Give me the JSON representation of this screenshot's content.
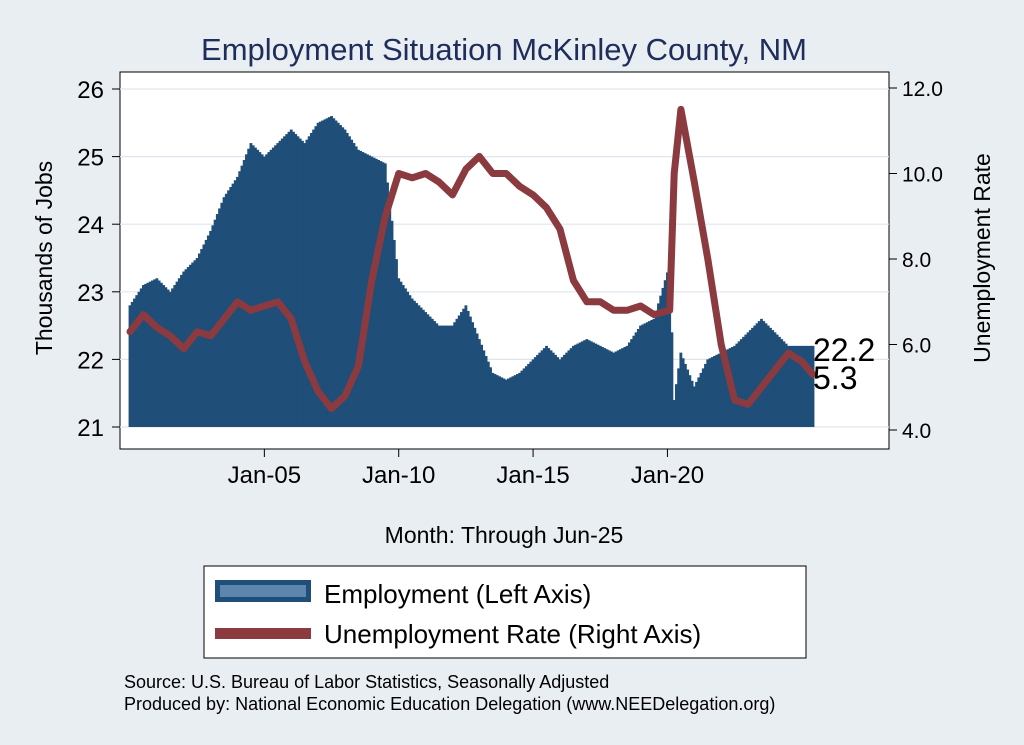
{
  "chart_data": {
    "type": "bar+line",
    "title": "Employment Situation McKinley  County, NM",
    "xlabel": "Month: Through Jun-25",
    "ylabel_left": "Thousands of Jobs",
    "ylabel_right": "Unemployment Rate",
    "x_ticks": [
      "Jan-05",
      "Jan-10",
      "Jan-15",
      "Jan-20"
    ],
    "y_left_ticks": [
      "21",
      "22",
      "23",
      "24",
      "25",
      "26"
    ],
    "y_left_range": [
      21,
      26
    ],
    "y_right_ticks": [
      "4.0",
      "6.0",
      "8.0",
      "10.0",
      "12.0"
    ],
    "y_right_range": [
      4,
      12
    ],
    "grid": true,
    "legend_position": "bottom",
    "series": [
      {
        "name": "Employment (Left Axis)",
        "axis": "left",
        "kind": "bar",
        "color": "#1f4e79",
        "points": [
          [
            "Jan-00",
            22.8
          ],
          [
            "Jul-00",
            23.1
          ],
          [
            "Jan-01",
            23.2
          ],
          [
            "Jul-01",
            23.0
          ],
          [
            "Jan-02",
            23.3
          ],
          [
            "Jul-02",
            23.5
          ],
          [
            "Jan-03",
            23.9
          ],
          [
            "Jul-03",
            24.4
          ],
          [
            "Jan-04",
            24.7
          ],
          [
            "Jul-04",
            25.2
          ],
          [
            "Jan-05",
            25.0
          ],
          [
            "Jul-05",
            25.2
          ],
          [
            "Jan-06",
            25.4
          ],
          [
            "Jul-06",
            25.2
          ],
          [
            "Jan-07",
            25.5
          ],
          [
            "Jul-07",
            25.6
          ],
          [
            "Jan-08",
            25.4
          ],
          [
            "Jul-08",
            25.1
          ],
          [
            "Jan-09",
            25.0
          ],
          [
            "Jul-09",
            24.9
          ],
          [
            "Jan-10",
            23.2
          ],
          [
            "Jul-10",
            22.9
          ],
          [
            "Jan-11",
            22.7
          ],
          [
            "Jul-11",
            22.5
          ],
          [
            "Jan-12",
            22.5
          ],
          [
            "Jul-12",
            22.8
          ],
          [
            "Jan-13",
            22.3
          ],
          [
            "Jul-13",
            21.8
          ],
          [
            "Jan-14",
            21.7
          ],
          [
            "Jul-14",
            21.8
          ],
          [
            "Jan-15",
            22.0
          ],
          [
            "Jul-15",
            22.2
          ],
          [
            "Jan-16",
            22.0
          ],
          [
            "Jul-16",
            22.2
          ],
          [
            "Jan-17",
            22.3
          ],
          [
            "Jul-17",
            22.2
          ],
          [
            "Jan-18",
            22.1
          ],
          [
            "Jul-18",
            22.2
          ],
          [
            "Jan-19",
            22.5
          ],
          [
            "Jul-19",
            22.6
          ],
          [
            "Feb-20",
            23.4
          ],
          [
            "Apr-20",
            21.4
          ],
          [
            "Jul-20",
            22.1
          ],
          [
            "Jan-21",
            21.6
          ],
          [
            "Jul-21",
            22.0
          ],
          [
            "Jan-22",
            22.1
          ],
          [
            "Jul-22",
            22.2
          ],
          [
            "Jan-23",
            22.4
          ],
          [
            "Jul-23",
            22.6
          ],
          [
            "Jan-24",
            22.4
          ],
          [
            "Jul-24",
            22.2
          ],
          [
            "Jan-25",
            22.2
          ],
          [
            "Jun-25",
            22.2
          ]
        ]
      },
      {
        "name": "Unemployment Rate (Right Axis)",
        "axis": "right",
        "kind": "line",
        "color": "#8b3a3f",
        "points": [
          [
            "Jan-00",
            6.3
          ],
          [
            "Jul-00",
            6.7
          ],
          [
            "Jan-01",
            6.4
          ],
          [
            "Jul-01",
            6.2
          ],
          [
            "Jan-02",
            5.9
          ],
          [
            "Jul-02",
            6.3
          ],
          [
            "Jan-03",
            6.2
          ],
          [
            "Jul-03",
            6.6
          ],
          [
            "Jan-04",
            7.0
          ],
          [
            "Jul-04",
            6.8
          ],
          [
            "Jan-05",
            6.9
          ],
          [
            "Jul-05",
            7.0
          ],
          [
            "Jan-06",
            6.6
          ],
          [
            "Jul-06",
            5.6
          ],
          [
            "Jan-07",
            4.9
          ],
          [
            "Jul-07",
            4.5
          ],
          [
            "Jan-08",
            4.8
          ],
          [
            "Jul-08",
            5.5
          ],
          [
            "Jan-09",
            7.5
          ],
          [
            "Jul-09",
            9.0
          ],
          [
            "Jan-10",
            10.0
          ],
          [
            "Jul-10",
            9.9
          ],
          [
            "Jan-11",
            10.0
          ],
          [
            "Jul-11",
            9.8
          ],
          [
            "Jan-12",
            9.5
          ],
          [
            "Jul-12",
            10.1
          ],
          [
            "Jan-13",
            10.4
          ],
          [
            "Jul-13",
            10.0
          ],
          [
            "Jan-14",
            10.0
          ],
          [
            "Jul-14",
            9.7
          ],
          [
            "Jan-15",
            9.5
          ],
          [
            "Jul-15",
            9.2
          ],
          [
            "Jan-16",
            8.7
          ],
          [
            "Jul-16",
            7.5
          ],
          [
            "Jan-17",
            7.0
          ],
          [
            "Jul-17",
            7.0
          ],
          [
            "Jan-18",
            6.8
          ],
          [
            "Jul-18",
            6.8
          ],
          [
            "Jan-19",
            6.9
          ],
          [
            "Jul-19",
            6.7
          ],
          [
            "Feb-20",
            6.8
          ],
          [
            "Apr-20",
            10.0
          ],
          [
            "Jul-20",
            11.5
          ],
          [
            "Jan-21",
            9.8
          ],
          [
            "Jul-21",
            8.0
          ],
          [
            "Jan-22",
            6.0
          ],
          [
            "Jul-22",
            4.7
          ],
          [
            "Jan-23",
            4.6
          ],
          [
            "Jul-23",
            5.0
          ],
          [
            "Jan-24",
            5.4
          ],
          [
            "Jul-24",
            5.8
          ],
          [
            "Jan-25",
            5.6
          ],
          [
            "Jun-25",
            5.3
          ]
        ]
      }
    ],
    "end_labels": [
      "22.2",
      "5.3"
    ]
  },
  "notes": {
    "source": "Source: U.S. Bureau of Labor Statistics, Seasonally Adjusted",
    "produced_by": "Produced by: National Economic Education Delegation (www.NEEDelegation.org)"
  }
}
